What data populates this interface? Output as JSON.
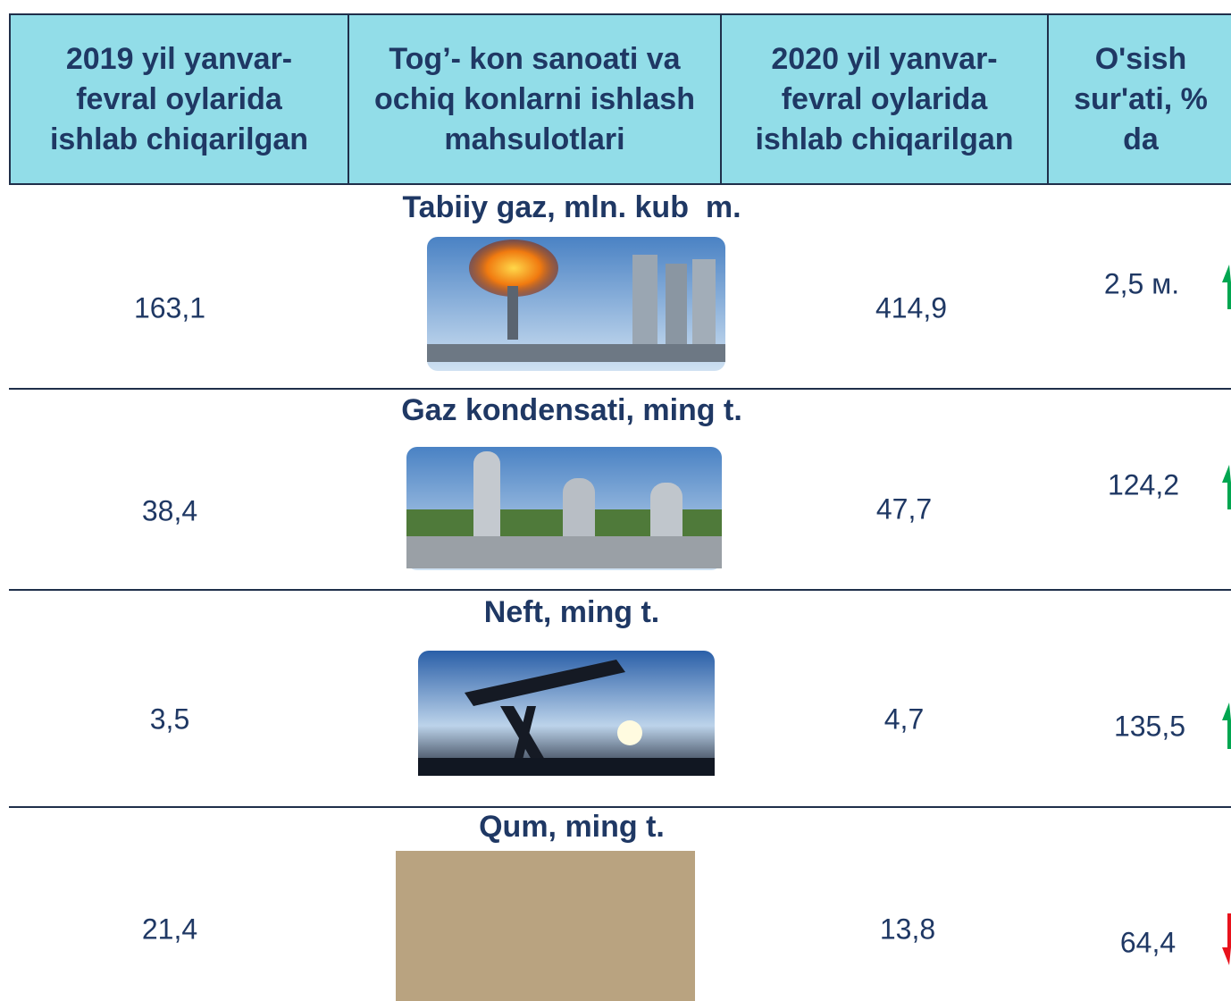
{
  "header": {
    "columns": [
      "2019 yil yanvar-fevral oylarida ishlab chiqarilgan",
      "Tog’- kon sanoati va ochiq konlarni ishlash mahsulotlari",
      "2020 yil yanvar-fevral oylarida ishlab chiqarilgan",
      "O'sish sur'ati, % da"
    ]
  },
  "rows": [
    {
      "title": "Tabiiy gaz, mln. kub  m.",
      "value_2019": "163,1",
      "value_2020": "414,9",
      "growth": "2,5 м."
    },
    {
      "title": "Gaz kondensati, ming t.",
      "value_2019": "38,4",
      "value_2020": "47,7",
      "growth": "124,2"
    },
    {
      "title": "Neft, ming t.",
      "value_2019": "3,5",
      "value_2020": "4,7",
      "growth": "135,5"
    },
    {
      "title": "Qum, ming t.",
      "value_2019": "21,4",
      "value_2020": "13,8",
      "growth": "64,4"
    }
  ]
}
